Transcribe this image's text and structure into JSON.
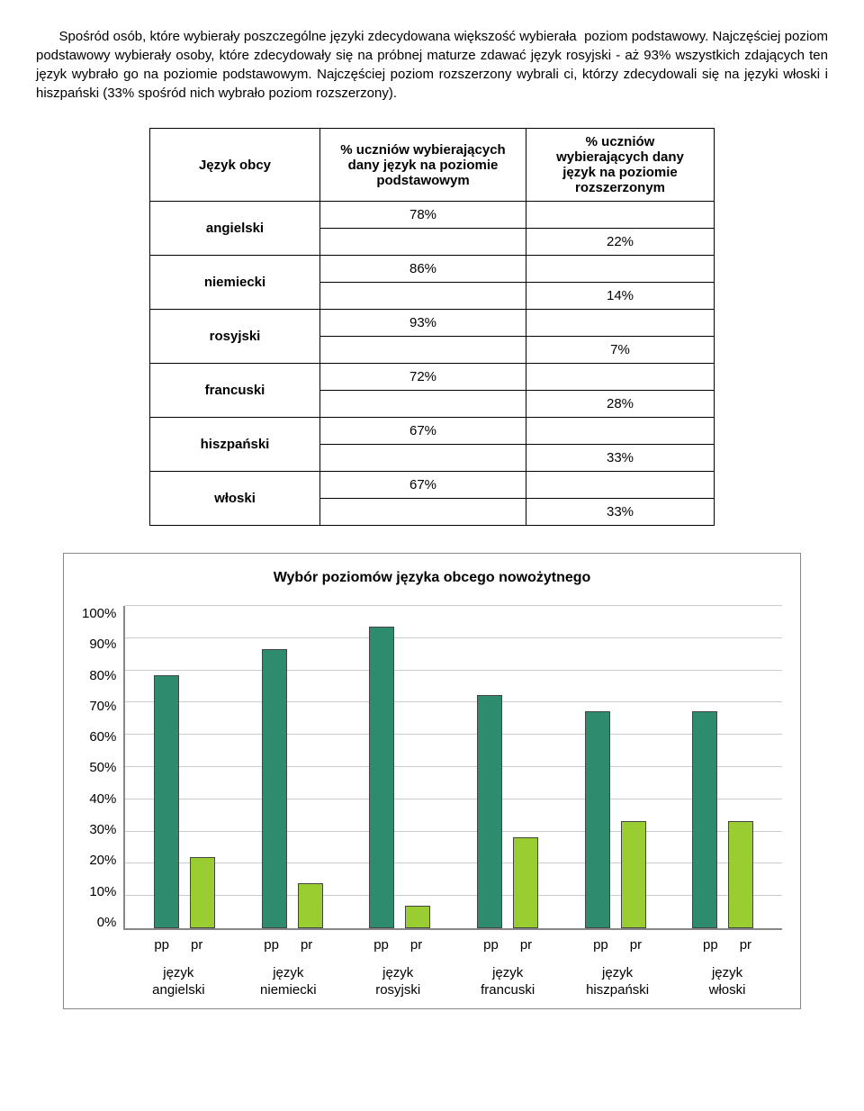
{
  "paragraph": {
    "text": "      Spośród osób, które wybierały poszczególne języki zdecydowana większość wybierała  poziom podstawowy. Najczęściej poziom podstawowy wybierały osoby, które zdecydowały się na próbnej maturze zdawać język rosyjski - aż 93% wszystkich zdających ten język wybrało go na poziomie podstawowym. Najczęściej poziom rozszerzony wybrali ci, którzy zdecydowali się na języki włoski i hiszpański (33% spośród nich wybrało poziom rozszerzony)."
  },
  "table": {
    "col1": "Język obcy",
    "col2": "% uczniów wybierających dany język na poziomie podstawowym",
    "col3": "% uczniów wybierających dany język na poziomie rozszerzonym",
    "rows": [
      {
        "lang": "angielski",
        "pp": "78%",
        "pr": "22%"
      },
      {
        "lang": "niemiecki",
        "pp": "86%",
        "pr": "14%"
      },
      {
        "lang": "rosyjski",
        "pp": "93%",
        "pr": "7%"
      },
      {
        "lang": "francuski",
        "pp": "72%",
        "pr": "28%"
      },
      {
        "lang": "hiszpański",
        "pp": "67%",
        "pr": "33%"
      },
      {
        "lang": "włoski",
        "pp": "67%",
        "pr": "33%"
      }
    ]
  },
  "chart": {
    "title": "Wybór poziomów języka obcego nowożytnego",
    "yticks": [
      "100%",
      "90%",
      "80%",
      "70%",
      "60%",
      "50%",
      "40%",
      "30%",
      "20%",
      "10%",
      "0%"
    ],
    "color_pp": "#2e8b6e",
    "color_pr": "#9acd32",
    "word_jezyk": "język",
    "label_pp": "pp",
    "label_pr": "pr",
    "series": [
      {
        "lang": "angielski",
        "pp": 78,
        "pr": 22
      },
      {
        "lang": "niemiecki",
        "pp": 86,
        "pr": 14
      },
      {
        "lang": "rosyjski",
        "pp": 93,
        "pr": 7
      },
      {
        "lang": "francuski",
        "pp": 72,
        "pr": 28
      },
      {
        "lang": "hiszpański",
        "pp": 67,
        "pr": 33
      },
      {
        "lang": "włoski",
        "pp": 67,
        "pr": 33
      }
    ]
  }
}
